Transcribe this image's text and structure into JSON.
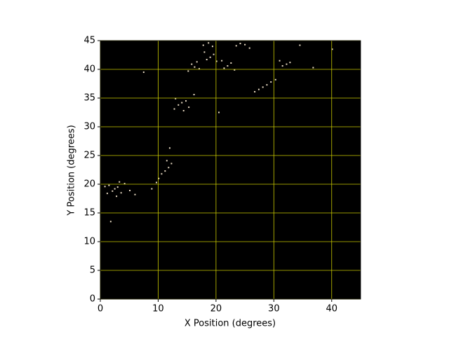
{
  "chart_data": {
    "type": "scatter",
    "xlabel": "X Position (degrees)",
    "ylabel": "Y Position (degrees)",
    "xlim": [
      0,
      45
    ],
    "ylim": [
      0,
      45
    ],
    "xticks": [
      0,
      10,
      20,
      30,
      40
    ],
    "yticks": [
      0,
      5,
      10,
      15,
      20,
      25,
      30,
      35,
      40,
      45
    ],
    "grid": true,
    "grid_color": "#c8c800",
    "background": "#000000",
    "color": "#eadcc4",
    "x": [
      2.5,
      2.1,
      3.0,
      1.5,
      3.6,
      2.8,
      1.2,
      4.2,
      5.1,
      0.8,
      3.3,
      6.0,
      11.2,
      10.6,
      11.8,
      12.3,
      10.1,
      11.5,
      9.7,
      12.0,
      8.9,
      14.1,
      13.5,
      14.8,
      13.0,
      15.3,
      14.4,
      12.8,
      16.2,
      16.3,
      15.8,
      17.1,
      16.7,
      15.2,
      19.0,
      18.4,
      19.6,
      18.0,
      20.1,
      22.0,
      21.4,
      22.6,
      23.2,
      21.0,
      18.7,
      17.8,
      19.4,
      24.2,
      23.5,
      25.0,
      25.8,
      28.1,
      27.4,
      28.8,
      26.7,
      29.5,
      30.3,
      32.2,
      31.5,
      32.8,
      31.0,
      7.5,
      34.5,
      40.1,
      20.5,
      36.8,
      1.8
    ],
    "y": [
      19.2,
      18.8,
      19.5,
      19.8,
      18.5,
      17.9,
      18.4,
      20.1,
      18.9,
      19.6,
      20.4,
      18.2,
      22.3,
      21.8,
      22.9,
      23.6,
      21.0,
      24.1,
      20.3,
      26.3,
      19.2,
      34.2,
      33.8,
      34.5,
      34.9,
      33.4,
      32.8,
      33.1,
      35.6,
      40.4,
      40.9,
      40.1,
      41.3,
      39.7,
      42.1,
      41.7,
      42.6,
      43.0,
      41.4,
      40.6,
      40.2,
      41.1,
      39.9,
      41.5,
      44.6,
      44.2,
      44.0,
      44.5,
      44.1,
      44.3,
      43.7,
      36.9,
      36.5,
      37.3,
      36.1,
      37.8,
      38.2,
      40.9,
      40.6,
      41.2,
      41.5,
      39.5,
      44.2,
      43.5,
      32.5,
      40.3,
      13.5
    ]
  }
}
